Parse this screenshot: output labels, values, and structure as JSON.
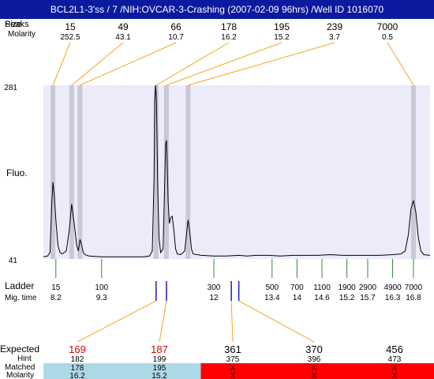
{
  "title": "BCL2L1-3'ss / 7 /NIH:OVCAR-3-Crashing (2007-02-09 96hrs) /Well ID 1016070",
  "top_row_labels": [
    "Peaks",
    "Size"
  ],
  "molarity_label": "Molarity",
  "fluo_label": "Fluo.",
  "ladder_label": "Ladder",
  "mig_time_label": "Mig. time",
  "expected_label": "Expected",
  "hint_label": "Hint",
  "matched_label": "Matched",
  "molarity_label_bottom": "Molarity",
  "colors": {
    "title_bg": "#0b1a9e",
    "plot_bg": "#ebebfa",
    "band": "#c8c8d6",
    "connector": "#f5a623",
    "ladder_tick": "#2e8b2e",
    "match_tick": "#1a1acc",
    "matched_bg": "#add8e6",
    "unmatched_bg": "#ff0000",
    "expected_red": "#e00000"
  },
  "chart_data": {
    "type": "line",
    "y_axis": {
      "min": 41,
      "max": 281,
      "tick_labels": [
        "281",
        "41"
      ]
    },
    "peaks": [
      {
        "size": "15",
        "molarity": "252.5",
        "time": 8.13
      },
      {
        "size": "49",
        "molarity": "43.1",
        "time": 8.58
      },
      {
        "size": "66",
        "molarity": "10.7",
        "time": 8.78
      },
      {
        "size": "178",
        "molarity": "16.2",
        "time": 10.61
      },
      {
        "size": "195",
        "molarity": "15.2",
        "time": 10.86
      },
      {
        "size": "239",
        "molarity": "3.7",
        "time": 11.38
      },
      {
        "size": "7000",
        "molarity": "0.5",
        "time": 16.8
      }
    ],
    "ladder": [
      {
        "size": "15",
        "time": "8.2",
        "t": 8.2
      },
      {
        "size": "100",
        "time": "9.3",
        "t": 9.3
      },
      {
        "size": "300",
        "time": "12",
        "t": 12.0
      },
      {
        "size": "500",
        "time": "13.4",
        "t": 13.4
      },
      {
        "size": "700",
        "time": "14",
        "t": 14.0
      },
      {
        "size": "1100",
        "time": "14.6",
        "t": 14.6
      },
      {
        "size": "1900",
        "time": "15.2",
        "t": 15.2
      },
      {
        "size": "2900",
        "time": "15.7",
        "t": 15.7
      },
      {
        "size": "4900",
        "time": "16.3",
        "t": 16.3
      },
      {
        "size": "7000",
        "time": "16.8",
        "t": 16.8
      }
    ],
    "expected": [
      {
        "expected": "169",
        "hint": "182",
        "matched": "178",
        "molarity": "16.2",
        "status": "matched",
        "highlight": true,
        "time": 10.61
      },
      {
        "expected": "187",
        "hint": "199",
        "matched": "195",
        "molarity": "15.2",
        "status": "matched",
        "highlight": true,
        "time": 10.86
      },
      {
        "expected": "361",
        "hint": "375",
        "matched": "X",
        "molarity": "X",
        "status": "unmatched",
        "highlight": false,
        "time": 12.42
      },
      {
        "expected": "370",
        "hint": "396",
        "matched": "X",
        "molarity": "X",
        "status": "unmatched",
        "highlight": false,
        "time": 12.6
      },
      {
        "expected": "456",
        "hint": "473",
        "matched": "X",
        "molarity": "X",
        "status": "unmatched",
        "highlight": false,
        "time": null
      }
    ],
    "trace": [
      [
        7.9,
        44
      ],
      [
        8.0,
        45
      ],
      [
        8.06,
        50
      ],
      [
        8.1,
        115
      ],
      [
        8.13,
        147
      ],
      [
        8.16,
        130
      ],
      [
        8.2,
        95
      ],
      [
        8.25,
        60
      ],
      [
        8.3,
        50
      ],
      [
        8.35,
        48
      ],
      [
        8.45,
        52
      ],
      [
        8.52,
        80
      ],
      [
        8.58,
        117
      ],
      [
        8.64,
        90
      ],
      [
        8.7,
        60
      ],
      [
        8.74,
        52
      ],
      [
        8.78,
        68
      ],
      [
        8.82,
        60
      ],
      [
        8.86,
        50
      ],
      [
        8.9,
        47
      ],
      [
        9.0,
        45
      ],
      [
        9.3,
        44
      ],
      [
        9.6,
        44
      ],
      [
        10.0,
        44
      ],
      [
        10.3,
        44
      ],
      [
        10.45,
        45
      ],
      [
        10.52,
        52
      ],
      [
        10.56,
        150
      ],
      [
        10.58,
        260
      ],
      [
        10.6,
        281
      ],
      [
        10.62,
        260
      ],
      [
        10.65,
        140
      ],
      [
        10.68,
        70
      ],
      [
        10.72,
        50
      ],
      [
        10.78,
        55
      ],
      [
        10.82,
        150
      ],
      [
        10.84,
        200
      ],
      [
        10.86,
        205
      ],
      [
        10.88,
        170
      ],
      [
        10.9,
        120
      ],
      [
        10.93,
        90
      ],
      [
        10.96,
        98
      ],
      [
        11.0,
        100
      ],
      [
        11.04,
        80
      ],
      [
        11.08,
        55
      ],
      [
        11.12,
        48
      ],
      [
        11.2,
        47
      ],
      [
        11.3,
        52
      ],
      [
        11.36,
        85
      ],
      [
        11.38,
        95
      ],
      [
        11.42,
        78
      ],
      [
        11.46,
        55
      ],
      [
        11.5,
        48
      ],
      [
        11.7,
        46
      ],
      [
        12.0,
        45
      ],
      [
        12.3,
        45
      ],
      [
        12.6,
        46
      ],
      [
        12.8,
        45
      ],
      [
        13.0,
        46
      ],
      [
        13.3,
        46
      ],
      [
        13.6,
        45
      ],
      [
        13.9,
        46
      ],
      [
        14.2,
        46
      ],
      [
        14.5,
        46
      ],
      [
        14.8,
        47
      ],
      [
        15.1,
        46
      ],
      [
        15.4,
        46
      ],
      [
        15.7,
        46
      ],
      [
        16.0,
        46
      ],
      [
        16.3,
        47
      ],
      [
        16.5,
        48
      ],
      [
        16.6,
        52
      ],
      [
        16.68,
        75
      ],
      [
        16.74,
        110
      ],
      [
        16.8,
        122
      ],
      [
        16.86,
        105
      ],
      [
        16.92,
        70
      ],
      [
        16.98,
        52
      ],
      [
        17.05,
        47
      ],
      [
        17.2,
        46
      ]
    ]
  }
}
